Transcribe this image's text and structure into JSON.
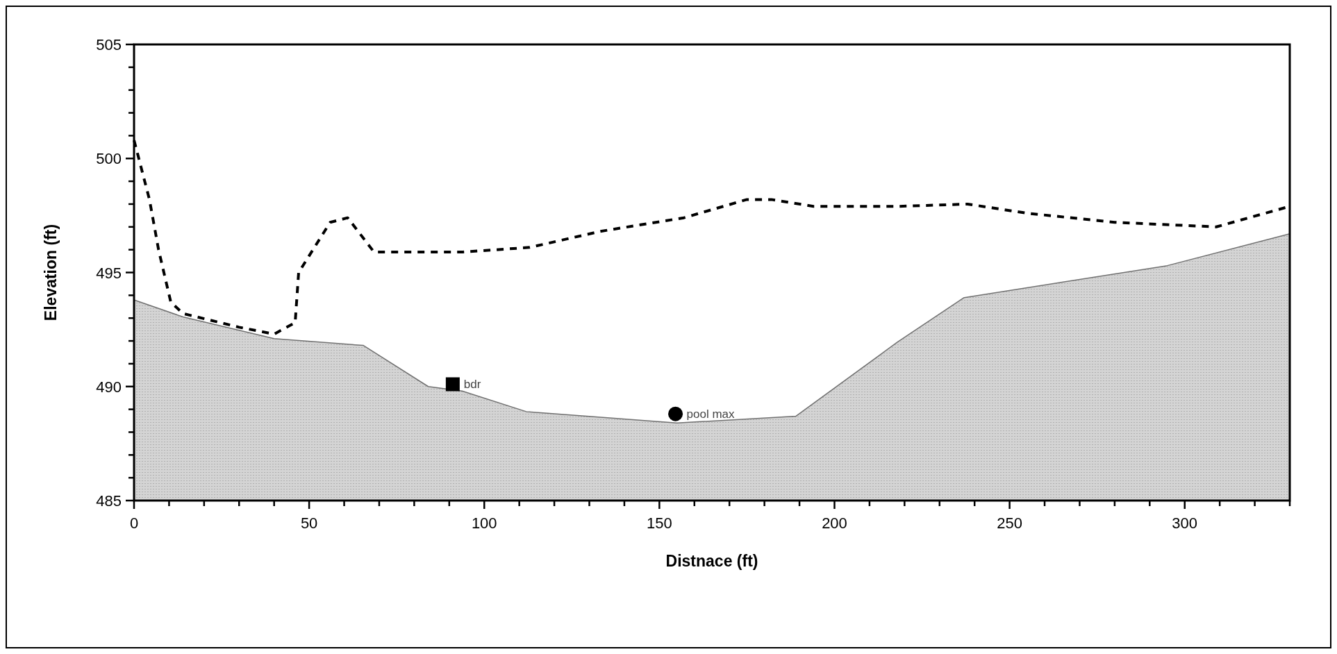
{
  "chart_data": {
    "type": "line",
    "xlabel": "Distnace (ft)",
    "ylabel": "Elevation (ft)",
    "xlim": [
      0,
      330
    ],
    "ylim": [
      485,
      505
    ],
    "xticks": [
      0,
      {
        "value": 10,
        "label": null
      },
      {
        "value": 20,
        "label": null
      },
      {
        "value": 30,
        "label": null
      },
      {
        "value": 40,
        "label": null
      },
      50,
      {
        "value": 60,
        "label": null
      },
      {
        "value": 70,
        "label": null
      },
      {
        "value": 80,
        "label": null
      },
      {
        "value": 90,
        "label": null
      },
      100,
      {
        "value": 110,
        "label": null
      },
      {
        "value": 120,
        "label": null
      },
      {
        "value": 130,
        "label": null
      },
      {
        "value": 140,
        "label": null
      },
      150,
      {
        "value": 160,
        "label": null
      },
      {
        "value": 170,
        "label": null
      },
      {
        "value": 180,
        "label": null
      },
      {
        "value": 190,
        "label": null
      },
      200,
      {
        "value": 210,
        "label": null
      },
      {
        "value": 220,
        "label": null
      },
      {
        "value": 230,
        "label": null
      },
      {
        "value": 240,
        "label": null
      },
      250,
      {
        "value": 260,
        "label": null
      },
      {
        "value": 270,
        "label": null
      },
      {
        "value": 280,
        "label": null
      },
      {
        "value": 290,
        "label": null
      },
      300,
      {
        "value": 310,
        "label": null
      },
      {
        "value": 320,
        "label": null
      },
      {
        "value": 330,
        "label": null
      }
    ],
    "yticks": [
      485,
      {
        "value": 486,
        "label": null
      },
      {
        "value": 487,
        "label": null
      },
      {
        "value": 488,
        "label": null
      },
      {
        "value": 489,
        "label": null
      },
      490,
      {
        "value": 491,
        "label": null
      },
      {
        "value": 492,
        "label": null
      },
      {
        "value": 493,
        "label": null
      },
      {
        "value": 494,
        "label": null
      },
      495,
      {
        "value": 496,
        "label": null
      },
      {
        "value": 497,
        "label": null
      },
      {
        "value": 498,
        "label": null
      },
      {
        "value": 499,
        "label": null
      },
      500,
      {
        "value": 501,
        "label": null
      },
      {
        "value": 502,
        "label": null
      },
      {
        "value": 503,
        "label": null
      },
      {
        "value": 504,
        "label": null
      },
      505
    ],
    "grid": false,
    "series": [
      {
        "type": "area",
        "color": "#d4d4d4",
        "x": [
          0,
          14,
          40,
          65.5,
          84,
          93.7,
          112,
          155,
          189,
          218,
          237,
          295,
          330
        ],
        "values": [
          493.8,
          493.05,
          492.1,
          491.8,
          490.0,
          489.8,
          488.9,
          488.4,
          488.7,
          491.95,
          493.9,
          495.3,
          496.7
        ]
      },
      {
        "color": "#000000",
        "line_style": "dashed",
        "x": [
          0,
          4.4,
          7,
          10.5,
          14,
          30,
          40,
          46,
          47,
          56,
          61,
          68.5,
          94,
          113,
          133,
          157,
          175,
          182,
          194,
          218,
          238,
          255,
          280,
          309,
          330
        ],
        "values": [
          500.8,
          498.2,
          496,
          493.7,
          493.2,
          492.6,
          492.3,
          492.8,
          495,
          497.2,
          497.4,
          495.9,
          495.9,
          496.1,
          496.8,
          497.4,
          498.2,
          498.2,
          497.9,
          497.9,
          498.0,
          497.6,
          497.2,
          497.0,
          497.9
        ]
      },
      {
        "type": "scatter",
        "name": "bdr",
        "color": "#000000",
        "marker": "square",
        "x": [
          91
        ],
        "values": [
          490.1
        ]
      },
      {
        "type": "scatter",
        "name": "pool max",
        "color": "#000000",
        "marker": "circle",
        "x": [
          154.6
        ],
        "values": [
          488.8
        ]
      }
    ]
  }
}
